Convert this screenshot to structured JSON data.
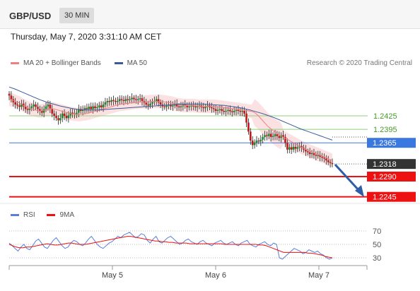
{
  "header": {
    "symbol": "GBP/USD",
    "timeframe": "30 MIN"
  },
  "datetime": "Thursday, May 7, 2020 3:31:10 AM CET",
  "legend": {
    "ma20_label": "MA 20 + Bollinger Bands",
    "ma50_label": "MA 50"
  },
  "credit": "Research © 2020 Trading Central",
  "rsi_legend": {
    "rsi_label": "RSI",
    "ma_label": "9MA"
  },
  "colors": {
    "ma20": "#f08080",
    "ma50": "#3a5a9a",
    "resistance": "#8fd07a",
    "pivot": "#3a78e0",
    "support": "#ee1111",
    "current": "#333333",
    "arrow": "#2f5ea8",
    "rsi": "#5a7fd8",
    "rsi_ma": "#ee1111"
  },
  "chart_data": {
    "type": "candlestick",
    "x_labels": [
      "May 5",
      "May 6",
      "May 7"
    ],
    "ylim": [
      1.2225,
      1.2505
    ],
    "levels": [
      {
        "value": 1.2425,
        "label": "1.2425",
        "kind": "resistance"
      },
      {
        "value": 1.2395,
        "label": "1.2395",
        "kind": "resistance"
      },
      {
        "value": 1.2365,
        "label": "1.2365",
        "kind": "pivot"
      },
      {
        "value": 1.2318,
        "label": "1.2318",
        "kind": "current"
      },
      {
        "value": 1.229,
        "label": "1.2290",
        "kind": "support"
      },
      {
        "value": 1.2245,
        "label": "1.2245",
        "kind": "support"
      }
    ],
    "close": [
      1.247,
      1.2462,
      1.2455,
      1.245,
      1.2448,
      1.2445,
      1.2452,
      1.2446,
      1.244,
      1.2438,
      1.2442,
      1.2446,
      1.245,
      1.2445,
      1.244,
      1.2436,
      1.2432,
      1.244,
      1.2446,
      1.245,
      1.244,
      1.243,
      1.2425,
      1.242,
      1.2415,
      1.242,
      1.243,
      1.2425,
      1.242,
      1.2426,
      1.2432,
      1.243,
      1.2428,
      1.2432,
      1.244,
      1.2436,
      1.2438,
      1.2442,
      1.244,
      1.2445,
      1.244,
      1.2446,
      1.2442,
      1.2444,
      1.2448,
      1.2444,
      1.245,
      1.2455,
      1.2458,
      1.2456,
      1.246,
      1.2458,
      1.2456,
      1.2458,
      1.2462,
      1.246,
      1.2458,
      1.2462,
      1.246,
      1.2462,
      1.2465,
      1.2462,
      1.246,
      1.2462,
      1.2464,
      1.2458,
      1.2454,
      1.245,
      1.2448,
      1.2452,
      1.2456,
      1.2458,
      1.2462,
      1.2455,
      1.245,
      1.2446,
      1.2445,
      1.2448,
      1.245,
      1.2446,
      1.2448,
      1.2452,
      1.2446,
      1.2444,
      1.2446,
      1.245,
      1.2448,
      1.2444,
      1.2446,
      1.2448,
      1.2446,
      1.2444,
      1.2446,
      1.2448,
      1.2444,
      1.2442,
      1.2445,
      1.2448,
      1.2444,
      1.2442,
      1.244,
      1.2436,
      1.2438,
      1.244,
      1.2436,
      1.2434,
      1.2436,
      1.2438,
      1.2435,
      1.2433,
      1.2436,
      1.2438,
      1.2436,
      1.2434,
      1.2436,
      1.243,
      1.241,
      1.239,
      1.237,
      1.236,
      1.2366,
      1.237,
      1.2368,
      1.2372,
      1.2378,
      1.2382,
      1.238,
      1.2385,
      1.2378,
      1.238,
      1.2384,
      1.238,
      1.2376,
      1.2382,
      1.2378,
      1.2365,
      1.235,
      1.2355,
      1.235,
      1.2356,
      1.2352,
      1.2355,
      1.2358,
      1.2354,
      1.235,
      1.2346,
      1.2344,
      1.234,
      1.2342,
      1.2338,
      1.2336,
      1.2338,
      1.2334,
      1.2332,
      1.233,
      1.2326,
      1.2322,
      1.232,
      1.2318
    ],
    "ma20": [
      1.2462,
      1.246,
      1.2457,
      1.2454,
      1.245,
      1.2446,
      1.2442,
      1.244,
      1.2438,
      1.2436,
      1.2436,
      1.2438,
      1.244,
      1.2441,
      1.244,
      1.2438,
      1.2436,
      1.2434,
      1.2432,
      1.243,
      1.2429,
      1.2428,
      1.2428,
      1.2429,
      1.243,
      1.2432,
      1.2434,
      1.2436,
      1.2438,
      1.244,
      1.2442,
      1.2444,
      1.2446,
      1.2448,
      1.245,
      1.2451,
      1.2452,
      1.2453,
      1.2454,
      1.2455,
      1.2455,
      1.2456,
      1.2456,
      1.2456,
      1.2457,
      1.2457,
      1.2457,
      1.2457,
      1.2456,
      1.2455,
      1.2454,
      1.2452,
      1.245,
      1.2449,
      1.2448,
      1.2448,
      1.2448,
      1.2448,
      1.2447,
      1.2446,
      1.2446,
      1.2446,
      1.2446,
      1.2446,
      1.2446,
      1.2445,
      1.2444,
      1.2443,
      1.2442,
      1.2441,
      1.244,
      1.2439,
      1.2438,
      1.2437,
      1.2436,
      1.2435,
      1.2432,
      1.2426,
      1.2418,
      1.241,
      1.2402,
      1.2396,
      1.239,
      1.2385,
      1.2381,
      1.2377,
      1.2373,
      1.2369,
      1.2365,
      1.2361,
      1.2357,
      1.2353,
      1.235,
      1.2347,
      1.2344,
      1.2341,
      1.2338,
      1.2335,
      1.2332,
      1.2329,
      1.2326
    ],
    "ma50": [
      1.2489,
      1.2484,
      1.2478,
      1.2472,
      1.2466,
      1.246,
      1.2455,
      1.2451,
      1.2447,
      1.2444,
      1.2441,
      1.2439,
      1.2438,
      1.2438,
      1.2438,
      1.2439,
      1.244,
      1.2441,
      1.2442,
      1.2443,
      1.2444,
      1.2445,
      1.2446,
      1.2447,
      1.2448,
      1.2449,
      1.245,
      1.2451,
      1.2451,
      1.2451,
      1.2451,
      1.2451,
      1.245,
      1.2449,
      1.2448,
      1.2446,
      1.2444,
      1.2441,
      1.2438,
      1.2434,
      1.243,
      1.2425,
      1.242,
      1.2414,
      1.2408,
      1.2402,
      1.2396,
      1.2391,
      1.2386,
      1.2381,
      1.2376,
      1.2371
    ],
    "rsi": [
      52,
      48,
      44,
      40,
      46,
      50,
      44,
      42,
      48,
      55,
      58,
      52,
      46,
      44,
      50,
      56,
      60,
      54,
      48,
      44,
      46,
      52,
      56,
      54,
      50,
      48,
      52,
      58,
      62,
      56,
      50,
      46,
      44,
      48,
      52,
      54,
      58,
      62,
      60,
      64,
      66,
      68,
      64,
      60,
      62,
      66,
      64,
      56,
      52,
      58,
      62,
      54,
      52,
      56,
      60,
      62,
      58,
      54,
      50,
      52,
      56,
      58,
      54,
      52,
      50,
      54,
      56,
      52,
      50,
      48,
      52,
      54,
      56,
      52,
      50,
      52,
      54,
      50,
      48,
      52,
      54,
      56,
      50,
      48,
      46,
      50,
      52,
      54,
      50,
      48,
      52,
      50,
      30,
      28,
      32,
      36,
      40,
      44,
      42,
      40,
      36,
      38,
      42,
      40,
      38,
      40,
      36,
      34,
      30,
      28,
      30
    ],
    "rsi_ma": [
      50,
      48,
      46,
      45,
      45,
      46,
      46,
      47,
      48,
      49,
      50,
      51,
      50,
      49,
      49,
      50,
      51,
      52,
      52,
      51,
      50,
      50,
      50,
      51,
      52,
      53,
      54,
      55,
      56,
      57,
      58,
      59,
      60,
      61,
      62,
      62,
      61,
      60,
      59,
      58,
      57,
      56,
      55,
      55,
      54,
      54,
      53,
      53,
      52,
      52,
      52,
      52,
      51,
      51,
      51,
      51,
      51,
      51,
      51,
      51,
      51,
      51,
      50,
      50,
      50,
      50,
      50,
      50,
      50,
      50,
      50,
      50,
      49,
      49,
      48,
      46,
      44,
      42,
      40,
      38,
      38,
      38,
      38,
      38,
      38,
      38,
      37,
      37,
      36,
      35,
      34,
      32,
      31,
      30
    ],
    "rsi_levels": [
      70,
      50,
      30
    ],
    "rsi_ylim": [
      10,
      90
    ]
  }
}
